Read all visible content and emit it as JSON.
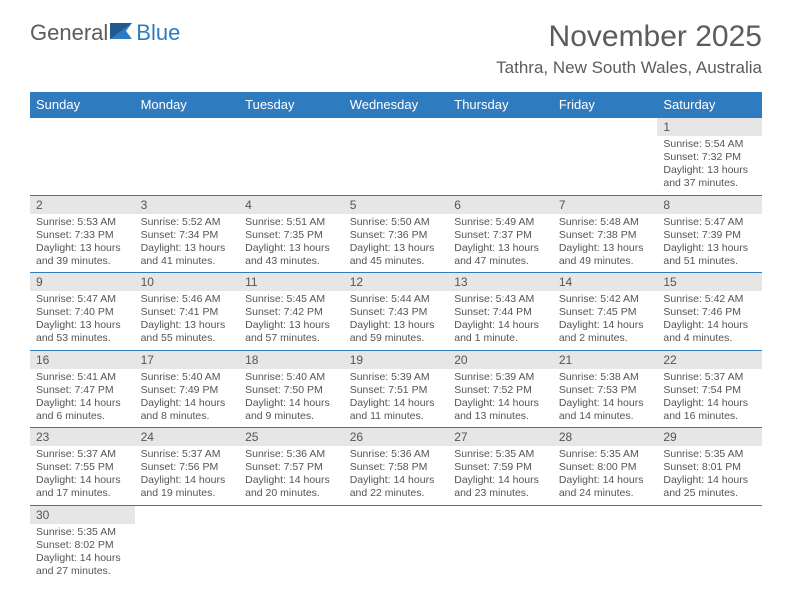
{
  "logo": {
    "text1": "General",
    "text2": "Blue"
  },
  "title": "November 2025",
  "location": "Tathra, New South Wales, Australia",
  "colors": {
    "header_bg": "#2f7bbf",
    "header_text": "#ffffff",
    "daynum_bg": "#e6e6e6",
    "cell_border": "#2f7bbf",
    "text": "#555555",
    "logo_gray": "#5c5c5c",
    "logo_blue": "#2f7bbf"
  },
  "day_headers": [
    "Sunday",
    "Monday",
    "Tuesday",
    "Wednesday",
    "Thursday",
    "Friday",
    "Saturday"
  ],
  "weeks": [
    [
      null,
      null,
      null,
      null,
      null,
      null,
      {
        "n": "1",
        "sr": "5:54 AM",
        "ss": "7:32 PM",
        "dl": "13 hours and 37 minutes."
      }
    ],
    [
      {
        "n": "2",
        "sr": "5:53 AM",
        "ss": "7:33 PM",
        "dl": "13 hours and 39 minutes."
      },
      {
        "n": "3",
        "sr": "5:52 AM",
        "ss": "7:34 PM",
        "dl": "13 hours and 41 minutes."
      },
      {
        "n": "4",
        "sr": "5:51 AM",
        "ss": "7:35 PM",
        "dl": "13 hours and 43 minutes."
      },
      {
        "n": "5",
        "sr": "5:50 AM",
        "ss": "7:36 PM",
        "dl": "13 hours and 45 minutes."
      },
      {
        "n": "6",
        "sr": "5:49 AM",
        "ss": "7:37 PM",
        "dl": "13 hours and 47 minutes."
      },
      {
        "n": "7",
        "sr": "5:48 AM",
        "ss": "7:38 PM",
        "dl": "13 hours and 49 minutes."
      },
      {
        "n": "8",
        "sr": "5:47 AM",
        "ss": "7:39 PM",
        "dl": "13 hours and 51 minutes."
      }
    ],
    [
      {
        "n": "9",
        "sr": "5:47 AM",
        "ss": "7:40 PM",
        "dl": "13 hours and 53 minutes."
      },
      {
        "n": "10",
        "sr": "5:46 AM",
        "ss": "7:41 PM",
        "dl": "13 hours and 55 minutes."
      },
      {
        "n": "11",
        "sr": "5:45 AM",
        "ss": "7:42 PM",
        "dl": "13 hours and 57 minutes."
      },
      {
        "n": "12",
        "sr": "5:44 AM",
        "ss": "7:43 PM",
        "dl": "13 hours and 59 minutes."
      },
      {
        "n": "13",
        "sr": "5:43 AM",
        "ss": "7:44 PM",
        "dl": "14 hours and 1 minute."
      },
      {
        "n": "14",
        "sr": "5:42 AM",
        "ss": "7:45 PM",
        "dl": "14 hours and 2 minutes."
      },
      {
        "n": "15",
        "sr": "5:42 AM",
        "ss": "7:46 PM",
        "dl": "14 hours and 4 minutes."
      }
    ],
    [
      {
        "n": "16",
        "sr": "5:41 AM",
        "ss": "7:47 PM",
        "dl": "14 hours and 6 minutes."
      },
      {
        "n": "17",
        "sr": "5:40 AM",
        "ss": "7:49 PM",
        "dl": "14 hours and 8 minutes."
      },
      {
        "n": "18",
        "sr": "5:40 AM",
        "ss": "7:50 PM",
        "dl": "14 hours and 9 minutes."
      },
      {
        "n": "19",
        "sr": "5:39 AM",
        "ss": "7:51 PM",
        "dl": "14 hours and 11 minutes."
      },
      {
        "n": "20",
        "sr": "5:39 AM",
        "ss": "7:52 PM",
        "dl": "14 hours and 13 minutes."
      },
      {
        "n": "21",
        "sr": "5:38 AM",
        "ss": "7:53 PM",
        "dl": "14 hours and 14 minutes."
      },
      {
        "n": "22",
        "sr": "5:37 AM",
        "ss": "7:54 PM",
        "dl": "14 hours and 16 minutes."
      }
    ],
    [
      {
        "n": "23",
        "sr": "5:37 AM",
        "ss": "7:55 PM",
        "dl": "14 hours and 17 minutes."
      },
      {
        "n": "24",
        "sr": "5:37 AM",
        "ss": "7:56 PM",
        "dl": "14 hours and 19 minutes."
      },
      {
        "n": "25",
        "sr": "5:36 AM",
        "ss": "7:57 PM",
        "dl": "14 hours and 20 minutes."
      },
      {
        "n": "26",
        "sr": "5:36 AM",
        "ss": "7:58 PM",
        "dl": "14 hours and 22 minutes."
      },
      {
        "n": "27",
        "sr": "5:35 AM",
        "ss": "7:59 PM",
        "dl": "14 hours and 23 minutes."
      },
      {
        "n": "28",
        "sr": "5:35 AM",
        "ss": "8:00 PM",
        "dl": "14 hours and 24 minutes."
      },
      {
        "n": "29",
        "sr": "5:35 AM",
        "ss": "8:01 PM",
        "dl": "14 hours and 25 minutes."
      }
    ],
    [
      {
        "n": "30",
        "sr": "5:35 AM",
        "ss": "8:02 PM",
        "dl": "14 hours and 27 minutes."
      },
      null,
      null,
      null,
      null,
      null,
      null
    ]
  ],
  "labels": {
    "sunrise": "Sunrise:",
    "sunset": "Sunset:",
    "daylight": "Daylight:"
  }
}
